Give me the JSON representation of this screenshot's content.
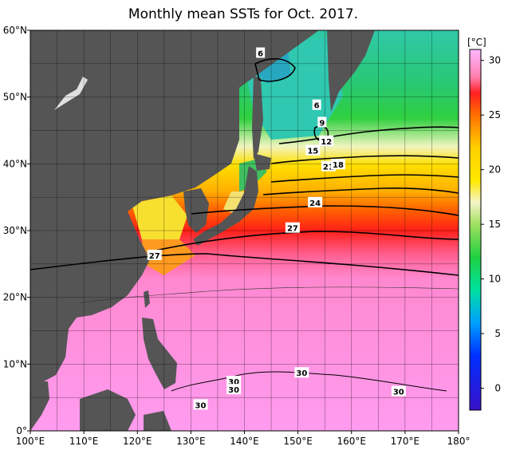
{
  "title": "Monthly mean SSTs for Oct. 2017.",
  "map": {
    "lon_range": [
      100,
      180
    ],
    "lat_range": [
      0,
      60
    ],
    "lon_ticks": [
      {
        "v": 100,
        "label": "100°E"
      },
      {
        "v": 110,
        "label": "110°E"
      },
      {
        "v": 120,
        "label": "120°E"
      },
      {
        "v": 130,
        "label": "130°E"
      },
      {
        "v": 140,
        "label": "140°E"
      },
      {
        "v": 150,
        "label": "150°E"
      },
      {
        "v": 160,
        "label": "160°E"
      },
      {
        "v": 170,
        "label": "170°E"
      },
      {
        "v": 180,
        "label": "180°"
      }
    ],
    "lat_ticks": [
      {
        "v": 0,
        "label": "0°"
      },
      {
        "v": 10,
        "label": "10°N"
      },
      {
        "v": 20,
        "label": "20°N"
      },
      {
        "v": 30,
        "label": "30°N"
      },
      {
        "v": 40,
        "label": "40°N"
      },
      {
        "v": 50,
        "label": "50°N"
      },
      {
        "v": 60,
        "label": "60°N"
      }
    ],
    "land_color": "#555555",
    "contour_labels": [
      {
        "text": "6",
        "lon": 143.0,
        "lat": 56.6
      },
      {
        "text": "6",
        "lon": 153.5,
        "lat": 48.8
      },
      {
        "text": "9",
        "lon": 154.5,
        "lat": 46.2
      },
      {
        "text": "12",
        "lon": 155.3,
        "lat": 43.4
      },
      {
        "text": "15",
        "lon": 152.8,
        "lat": 42.0
      },
      {
        "text": "21",
        "lon": 155.7,
        "lat": 39.6
      },
      {
        "text": "18",
        "lon": 157.5,
        "lat": 39.9
      },
      {
        "text": "24",
        "lon": 153.2,
        "lat": 34.2
      },
      {
        "text": "27",
        "lon": 149.0,
        "lat": 30.4
      },
      {
        "text": "27",
        "lon": 123.2,
        "lat": 26.3
      },
      {
        "text": "30",
        "lon": 138.0,
        "lat": 7.4
      },
      {
        "text": "30",
        "lon": 138.0,
        "lat": 6.2
      },
      {
        "text": "30",
        "lon": 131.8,
        "lat": 3.9
      },
      {
        "text": "30",
        "lon": 150.7,
        "lat": 8.7
      },
      {
        "text": "30",
        "lon": 168.8,
        "lat": 5.9
      }
    ]
  },
  "colorbar": {
    "unit": "[°C]",
    "min": -2,
    "max": 31,
    "tick_labels": [
      {
        "v": 0,
        "label": "0"
      },
      {
        "v": 5,
        "label": "5"
      },
      {
        "v": 10,
        "label": "10"
      },
      {
        "v": 15,
        "label": "15"
      },
      {
        "v": 20,
        "label": "20"
      },
      {
        "v": 25,
        "label": "25"
      },
      {
        "v": 30,
        "label": "30"
      }
    ],
    "stops": [
      {
        "v": -2,
        "color": "#3a10c8"
      },
      {
        "v": 3,
        "color": "#0030ff"
      },
      {
        "v": 6,
        "color": "#00a0ff"
      },
      {
        "v": 9,
        "color": "#00e0a0"
      },
      {
        "v": 12,
        "color": "#20d040"
      },
      {
        "v": 15,
        "color": "#a0e060"
      },
      {
        "v": 17,
        "color": "#f4f4c8"
      },
      {
        "v": 19,
        "color": "#ffe800"
      },
      {
        "v": 22,
        "color": "#ffd000"
      },
      {
        "v": 25,
        "color": "#ff7000"
      },
      {
        "v": 27,
        "color": "#ff2020"
      },
      {
        "v": 28.5,
        "color": "#ff80b0"
      },
      {
        "v": 31,
        "color": "#ffb8ff"
      }
    ]
  }
}
